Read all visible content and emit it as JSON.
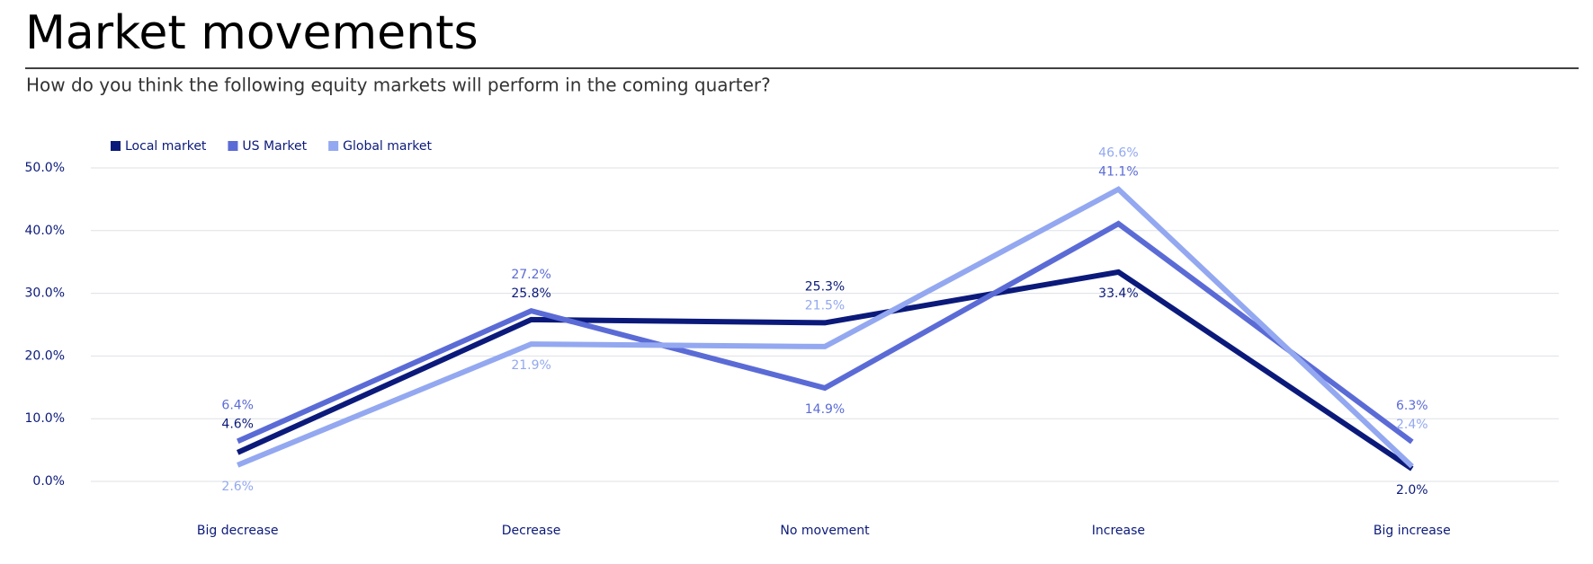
{
  "chart_data": {
    "type": "line",
    "title": "Market movements",
    "subtitle": "How do you think the following equity markets will perform in the coming quarter?",
    "categories": [
      "Big decrease",
      "Decrease",
      "No movement",
      "Increase",
      "Big increase"
    ],
    "series": [
      {
        "name": "Local market",
        "color": "#0b1a7a",
        "values": [
          4.6,
          25.8,
          25.3,
          33.4,
          2.0
        ],
        "value_labels": [
          "4.6%",
          "25.8%",
          "25.3%",
          "33.4%",
          "2.0%"
        ]
      },
      {
        "name": "US Market",
        "color": "#5b6bd6",
        "values": [
          6.4,
          27.2,
          14.9,
          41.1,
          6.3
        ],
        "value_labels": [
          "6.4%",
          "27.2%",
          "14.9%",
          "41.1%",
          "6.3%"
        ]
      },
      {
        "name": "Global market",
        "color": "#93a8f0",
        "values": [
          2.6,
          21.9,
          21.5,
          46.6,
          2.4
        ],
        "value_labels": [
          "2.6%",
          "21.9%",
          "21.5%",
          "46.6%",
          "2.4%"
        ]
      }
    ],
    "ylim": [
      0,
      50
    ],
    "yticks": [
      {
        "value": 0,
        "label": "0.0%"
      },
      {
        "value": 10,
        "label": "10.0%"
      },
      {
        "value": 20,
        "label": "20.0%"
      },
      {
        "value": 30,
        "label": "30.0%"
      },
      {
        "value": 40,
        "label": "40.0%"
      },
      {
        "value": 50,
        "label": "50.0%"
      }
    ],
    "grid": true,
    "legend": "top-left"
  }
}
